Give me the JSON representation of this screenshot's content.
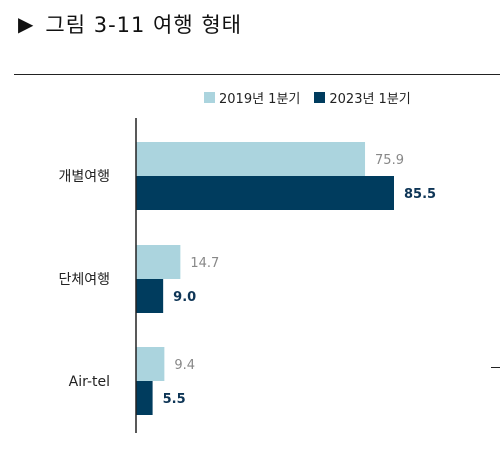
{
  "title": {
    "marker": "▶",
    "text": "그림 3-11 여행 형태"
  },
  "chart_data": {
    "type": "bar",
    "orientation": "horizontal",
    "categories": [
      "개별여행",
      "단체여행",
      "Air-tel"
    ],
    "series": [
      {
        "name": "2019년 1분기",
        "values": [
          75.9,
          14.7,
          9.4
        ],
        "color": "#abd4de",
        "label_color": "#888888"
      },
      {
        "name": "2023년 1분기",
        "values": [
          85.5,
          9.0,
          5.5
        ],
        "color": "#003c5e",
        "label_color": "#0e3556"
      }
    ],
    "value_labels": [
      [
        "75.9",
        "14.7",
        "9.4"
      ],
      [
        "85.5",
        "9.0",
        "5.5"
      ]
    ],
    "xlim": [
      0,
      100
    ],
    "legend": "top",
    "grid": false
  }
}
